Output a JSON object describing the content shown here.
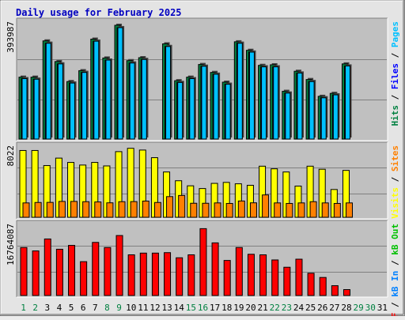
{
  "chart_data": {
    "title": "Daily usage for February 2025",
    "type": "bar",
    "x": [
      "1",
      "2",
      "3",
      "4",
      "5",
      "6",
      "7",
      "8",
      "9",
      "10",
      "11",
      "12",
      "13",
      "14",
      "15",
      "16",
      "17",
      "18",
      "19",
      "20",
      "21",
      "22",
      "23",
      "24",
      "25",
      "26",
      "27",
      "28",
      "29",
      "30",
      "31"
    ],
    "weekend_days": [
      "1",
      "2",
      "8",
      "9",
      "15",
      "16",
      "22",
      "23",
      "29",
      "30"
    ],
    "panels": [
      {
        "id": "pages-files-hits",
        "max_label": "393987",
        "legend": [
          {
            "label": "Hits",
            "color": "#008040"
          },
          {
            "label": "Files",
            "color": "#0000ff"
          },
          {
            "label": "Pages",
            "color": "#00c0ff"
          }
        ],
        "ylim": [
          0,
          393987
        ],
        "series": [
          {
            "name": "Hits",
            "values": [
              210000,
              210000,
              333000,
              263000,
              195000,
              232000,
              339000,
              275000,
              386000,
              266000,
              276000,
              0,
              323000,
              198000,
              210000,
              253000,
              226000,
              193000,
              330000,
              301000,
              250000,
              252000,
              162000,
              230000,
              202000,
              145000,
              155000,
              255000,
              0,
              0,
              0
            ]
          },
          {
            "name": "Files",
            "values": [
              205000,
              203000,
              325000,
              255000,
              190000,
              226000,
              332000,
              268000,
              378000,
              258000,
              270000,
              0,
              314000,
              192000,
              205000,
              247000,
              220000,
              186000,
              325000,
              295000,
              245000,
              245000,
              156000,
              224000,
              195000,
              140000,
              150000,
              248000,
              0,
              0,
              0
            ]
          },
          {
            "name": "Pages",
            "values": [
              205000,
              203000,
              325000,
              255000,
              190000,
              226000,
              332000,
              268000,
              378000,
              258000,
              270000,
              0,
              314000,
              192000,
              205000,
              247000,
              220000,
              186000,
              325000,
              295000,
              245000,
              245000,
              156000,
              224000,
              195000,
              140000,
              150000,
              248000,
              0,
              0,
              0
            ]
          }
        ]
      },
      {
        "id": "visits-sites",
        "max_label": "8022",
        "legend": [
          {
            "label": "Visits",
            "color": "#ffff00"
          },
          {
            "label": "Sites",
            "color": "#ff8000"
          }
        ],
        "ylim": [
          0,
          8022
        ],
        "series": [
          {
            "name": "Visits",
            "values": [
              7620,
              7620,
              5900,
              6750,
              6260,
              5960,
              6260,
              5860,
              7490,
              7870,
              7670,
              6800,
              5170,
              4170,
              3590,
              3280,
              3870,
              3980,
              3820,
              3650,
              5830,
              5530,
              5170,
              3560,
              5830,
              5480,
              3170,
              5350,
              0,
              0,
              0
            ]
          },
          {
            "name": "Sites",
            "values": [
              1640,
              1690,
              1700,
              1810,
              1810,
              1780,
              1750,
              1650,
              1780,
              1790,
              1850,
              1690,
              2360,
              2490,
              1600,
              1600,
              1640,
              1580,
              1860,
              1650,
              2550,
              1640,
              1580,
              1640,
              1780,
              1640,
              1580,
              1640,
              0,
              0,
              0
            ]
          }
        ]
      },
      {
        "id": "kbf-kbin-kbout",
        "max_label": "16764087",
        "legend": [
          {
            "label": "kB F",
            "color": "#ff0000"
          },
          {
            "label": "kB In",
            "color": "#0080ff"
          },
          {
            "label": "kB Out",
            "color": "#00c000"
          }
        ],
        "ylim": [
          0,
          16764087
        ],
        "series": [
          {
            "name": "kB F",
            "values": [
              11440000,
              10630000,
              13480000,
              11030000,
              11950000,
              8070000,
              12660000,
              11440000,
              14300000,
              9700000,
              10110000,
              10110000,
              10220000,
              9000000,
              9700000,
              15940000,
              12550000,
              8360000,
              11440000,
              9830000,
              9700000,
              8480000,
              6740000,
              8660000,
              5310000,
              4300000,
              2340000,
              1410000,
              0,
              0,
              0
            ]
          }
        ]
      }
    ]
  }
}
